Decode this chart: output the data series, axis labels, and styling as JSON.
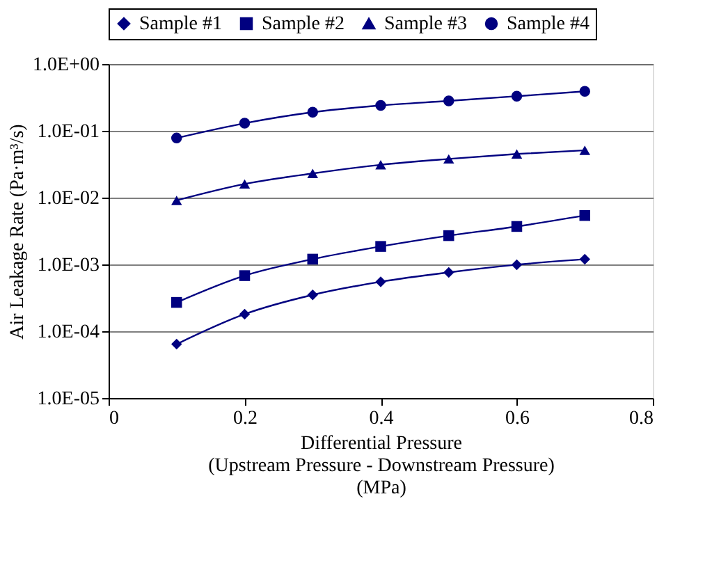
{
  "chart_data": {
    "type": "line",
    "xlabel": "Differential Pressure\n(Upstream Pressure - Downstream Pressure)\n(MPa)",
    "ylabel": "Air Leakage Rate (Pa·m³/s)",
    "x": [
      0.1,
      0.2,
      0.3,
      0.4,
      0.5,
      0.6,
      0.7
    ],
    "series": [
      {
        "name": "Sample #1",
        "color": "#000080",
        "marker": "diamond",
        "values": [
          6.4e-05,
          0.00018,
          0.00035,
          0.00055,
          0.00076,
          0.00099,
          0.0012
        ]
      },
      {
        "name": "Sample #2",
        "color": "#000080",
        "marker": "square",
        "values": [
          0.00027,
          0.00068,
          0.0012,
          0.00186,
          0.0027,
          0.0037,
          0.0054
        ]
      },
      {
        "name": "Sample #3",
        "color": "#000080",
        "marker": "triangle",
        "values": [
          0.0091,
          0.016,
          0.023,
          0.031,
          0.038,
          0.045,
          0.051
        ]
      },
      {
        "name": "Sample #4",
        "color": "#000080",
        "marker": "circle",
        "values": [
          0.078,
          0.13,
          0.19,
          0.24,
          0.28,
          0.33,
          0.39
        ]
      }
    ],
    "xlim": [
      0,
      0.8
    ],
    "xticks": [
      0,
      0.2,
      0.4,
      0.6,
      0.8
    ],
    "ylim": [
      1e-05,
      1
    ],
    "yticks": [
      {
        "value": 1e-05,
        "label": "1.0E-05"
      },
      {
        "value": 0.0001,
        "label": "1.0E-04"
      },
      {
        "value": 0.001,
        "label": "1.0E-03"
      },
      {
        "value": 0.01,
        "label": "1.0E-02"
      },
      {
        "value": 0.1,
        "label": "1.0E-01"
      },
      {
        "value": 1,
        "label": "1.0E+00"
      }
    ],
    "log": "y",
    "grid": "y",
    "legend": "top",
    "line_style": "solid"
  }
}
